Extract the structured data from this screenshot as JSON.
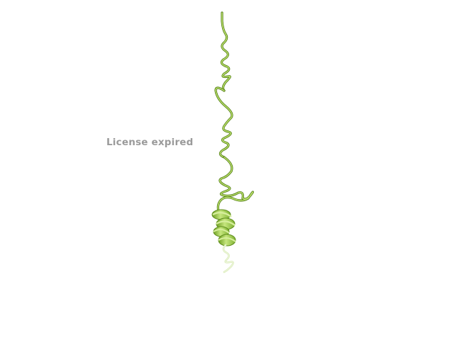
{
  "viewer": {
    "watermark_text": "License expired",
    "colors": {
      "background": "#ffffff",
      "watermark": "#9a9a9a",
      "ribbon_light": "#b8dd6a",
      "ribbon_mid": "#8cc23c",
      "ribbon_dark": "#4f7a12",
      "ribbon_pale": "#d8ebb4"
    },
    "structure": {
      "representation": "cartoon",
      "secondary_structures": [
        "coil",
        "alpha-helix"
      ]
    }
  }
}
